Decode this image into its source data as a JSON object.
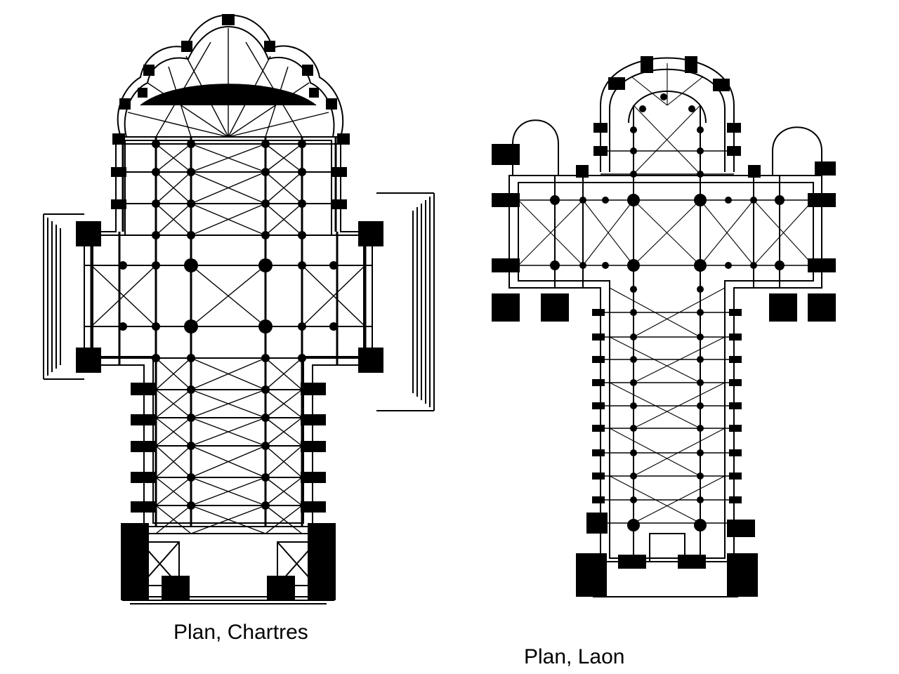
{
  "plans": [
    {
      "caption": "Plan, Chartres"
    },
    {
      "caption": "Plan, Laon"
    }
  ],
  "colors": {
    "ink": "#000000",
    "paper": "#ffffff"
  }
}
